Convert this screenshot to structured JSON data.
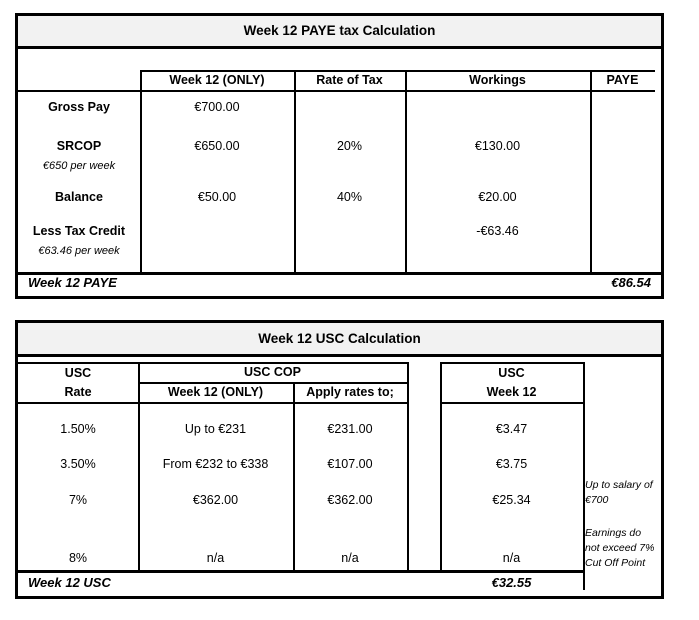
{
  "colors": {
    "band_bg": "#f2f2f2",
    "border": "#000000",
    "page_bg": "#ffffff"
  },
  "paye_table": {
    "title": "Week 12 PAYE tax Calculation",
    "columns": [
      "Week 12 (ONLY)",
      "Rate of Tax",
      "Workings",
      "PAYE"
    ],
    "rows": [
      {
        "label": "Gross Pay",
        "sublabel": "",
        "week12": "€700.00",
        "rate": "",
        "workings": "",
        "paye": ""
      },
      {
        "label": "SRCOP",
        "sublabel": "€650 per week",
        "week12": "€650.00",
        "rate": "20%",
        "workings": "€130.00",
        "paye": ""
      },
      {
        "label": "Balance",
        "sublabel": "",
        "week12": "€50.00",
        "rate": "40%",
        "workings": "€20.00",
        "paye": ""
      },
      {
        "label": "Less Tax Credit",
        "sublabel": "€63.46 per week",
        "week12": "",
        "rate": "",
        "workings": "-€63.46",
        "paye": ""
      }
    ],
    "footer": {
      "label": "Week 12 PAYE",
      "value": "€86.54"
    }
  },
  "usc_table": {
    "title": "Week 12 USC Calculation",
    "headers": {
      "col_rate_line1": "USC",
      "col_rate_line2": "Rate",
      "group_cop": "USC COP",
      "col_cop_week12": "Week 12 (ONLY)",
      "col_apply": "Apply rates to;",
      "col_usc_line1": "USC",
      "col_usc_line2": "Week 12"
    },
    "rows": [
      {
        "rate": "1.50%",
        "cop_week12": "Up to €231",
        "apply": "€231.00",
        "usc": "€3.47"
      },
      {
        "rate": "3.50%",
        "cop_week12": "From €232 to €338",
        "apply": "€107.00",
        "usc": "€3.75"
      },
      {
        "rate": "7%",
        "cop_week12": "€362.00",
        "apply": "€362.00",
        "usc": "€25.34"
      },
      {
        "rate": "8%",
        "cop_week12": "n/a",
        "apply": "n/a",
        "usc": "n/a"
      }
    ],
    "footer": {
      "label": "Week 12 USC",
      "value": "€32.55"
    },
    "notes": [
      {
        "lines": [
          "Up to salary of",
          "€700"
        ]
      },
      {
        "lines": [
          "Earnings do",
          "not exceed 7%",
          "Cut Off Point"
        ]
      }
    ]
  }
}
